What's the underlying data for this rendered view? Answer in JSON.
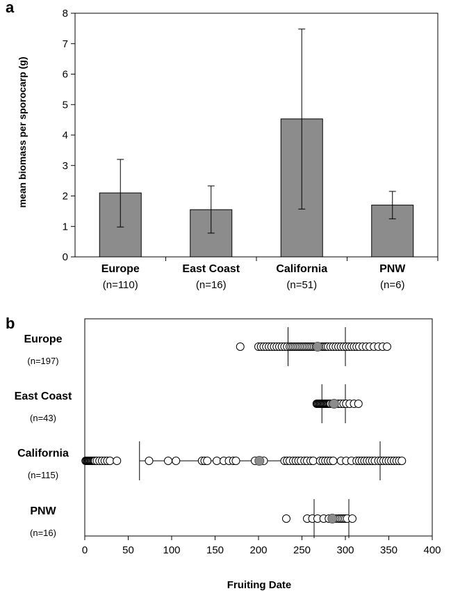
{
  "chart_data": [
    {
      "panel": "a",
      "type": "bar",
      "ylabel": "mean biomass per sporocarp (g)",
      "xlabel": "",
      "ylim": [
        0,
        8
      ],
      "yticks": [
        0,
        1,
        2,
        3,
        4,
        5,
        6,
        7,
        8
      ],
      "categories": [
        "Europe",
        "East Coast",
        "California",
        "PNW"
      ],
      "counts": [
        "(n=110)",
        "(n=16)",
        "(n=51)",
        "(n=6)"
      ],
      "values": [
        2.1,
        1.55,
        4.53,
        1.7
      ],
      "error_low": [
        0.98,
        0.78,
        1.57,
        1.25
      ],
      "error_high": [
        3.2,
        2.33,
        7.48,
        2.15
      ],
      "bar_color": "#8c8c8c"
    },
    {
      "panel": "b",
      "type": "scatter",
      "xlabel": "Fruiting Date",
      "ylabel": "",
      "xlim": [
        0,
        400
      ],
      "xticks": [
        0,
        50,
        100,
        150,
        200,
        250,
        300,
        350,
        400
      ],
      "rows": [
        {
          "name": "Europe",
          "count": "(n=197)",
          "mean": 268,
          "range": [
            234,
            300
          ],
          "points": [
            179,
            200,
            203,
            206,
            209,
            212,
            215,
            218,
            221,
            224,
            227,
            230,
            233,
            236,
            238,
            240,
            242,
            244,
            246,
            248,
            250,
            252,
            254,
            256,
            258,
            260,
            262,
            264,
            266,
            270,
            272,
            274,
            276,
            278,
            280,
            283,
            286,
            289,
            292,
            295,
            298,
            301,
            304,
            307,
            310,
            313,
            316,
            320,
            324,
            328,
            333,
            338,
            343,
            348
          ]
        },
        {
          "name": "East Coast",
          "count": "(n=43)",
          "mean": 287,
          "range": [
            273,
            300
          ],
          "points": [
            267,
            268,
            269,
            270,
            271,
            272,
            273,
            274,
            275,
            276,
            277,
            278,
            279,
            280,
            281,
            282,
            283,
            285,
            289,
            292,
            295,
            298,
            301,
            305,
            310,
            315
          ]
        },
        {
          "name": "California",
          "count": "(n=115)",
          "mean": 201,
          "range": [
            63,
            340
          ],
          "points": [
            1,
            2,
            3,
            4,
            5,
            6,
            7,
            8,
            9,
            10,
            11,
            12,
            14,
            17,
            20,
            23,
            26,
            29,
            37,
            74,
            96,
            105,
            135,
            138,
            141,
            152,
            160,
            166,
            171,
            174,
            196,
            206,
            230,
            233,
            236,
            240,
            243,
            246,
            249,
            253,
            256,
            260,
            263,
            271,
            274,
            277,
            280,
            283,
            286,
            295,
            301,
            307,
            313,
            316,
            319,
            322,
            325,
            328,
            331,
            334,
            338,
            341,
            344,
            347,
            350,
            353,
            356,
            359,
            362,
            365
          ]
        },
        {
          "name": "PNW",
          "count": "(n=16)",
          "mean": 285,
          "range": [
            264,
            304
          ],
          "points": [
            232,
            256,
            262,
            268,
            275,
            281,
            289,
            292,
            294,
            296,
            298,
            300,
            302,
            308
          ]
        }
      ],
      "mean_color": "#8c8c8c"
    }
  ]
}
